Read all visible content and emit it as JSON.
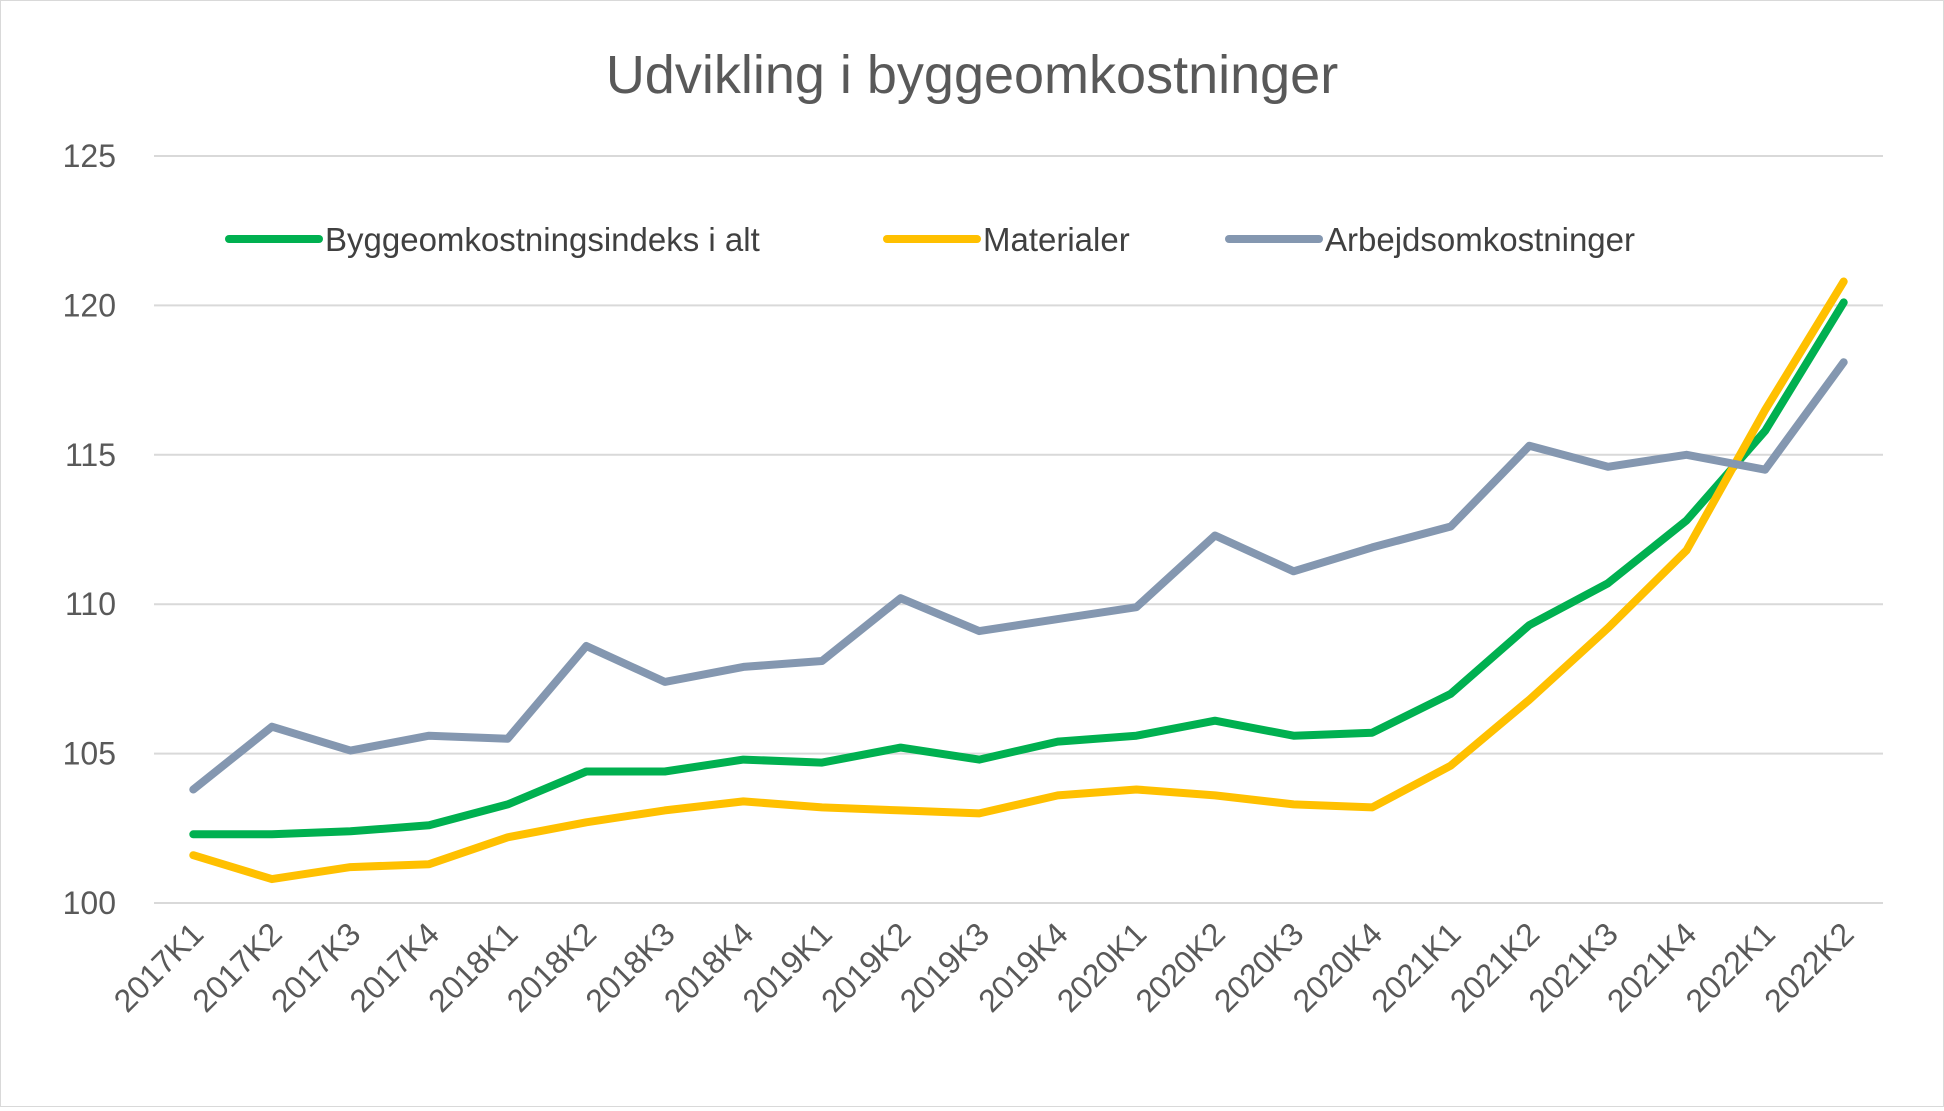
{
  "chart_data": {
    "type": "line",
    "title": "Udvikling i byggeomkostninger",
    "xlabel": "",
    "ylabel": "",
    "ylim": [
      100,
      125
    ],
    "yticks": [
      100,
      105,
      110,
      115,
      120,
      125
    ],
    "grid": true,
    "legend_position": "top",
    "categories": [
      "2017K1",
      "2017K2",
      "2017K3",
      "2017K4",
      "2018K1",
      "2018K2",
      "2018K3",
      "2018K4",
      "2019K1",
      "2019K2",
      "2019K3",
      "2019K4",
      "2020K1",
      "2020K2",
      "2020K3",
      "2020K4",
      "2021K1",
      "2021K2",
      "2021K3",
      "2021K4",
      "2022K1",
      "2022K2"
    ],
    "series": [
      {
        "name": "Byggeomkostningsindeks i alt",
        "color": "#00b050",
        "values": [
          102.3,
          102.3,
          102.4,
          102.6,
          103.3,
          104.4,
          104.4,
          104.8,
          104.7,
          105.2,
          104.8,
          105.4,
          105.6,
          106.1,
          105.6,
          105.7,
          107.0,
          109.3,
          110.7,
          112.8,
          115.8,
          120.1
        ]
      },
      {
        "name": "Materialer",
        "color": "#ffc000",
        "values": [
          101.6,
          100.8,
          101.2,
          101.3,
          102.2,
          102.7,
          103.1,
          103.4,
          103.2,
          103.1,
          103.0,
          103.6,
          103.8,
          103.6,
          103.3,
          103.2,
          104.6,
          106.8,
          109.2,
          111.8,
          116.5,
          120.8
        ]
      },
      {
        "name": "Arbejdsomkostninger",
        "color": "#8497b0",
        "values": [
          103.8,
          105.9,
          105.1,
          105.6,
          105.5,
          108.6,
          107.4,
          107.9,
          108.1,
          110.2,
          109.1,
          109.5,
          109.9,
          112.3,
          111.1,
          111.9,
          112.6,
          115.3,
          114.6,
          115.0,
          114.5,
          118.1
        ]
      }
    ]
  }
}
